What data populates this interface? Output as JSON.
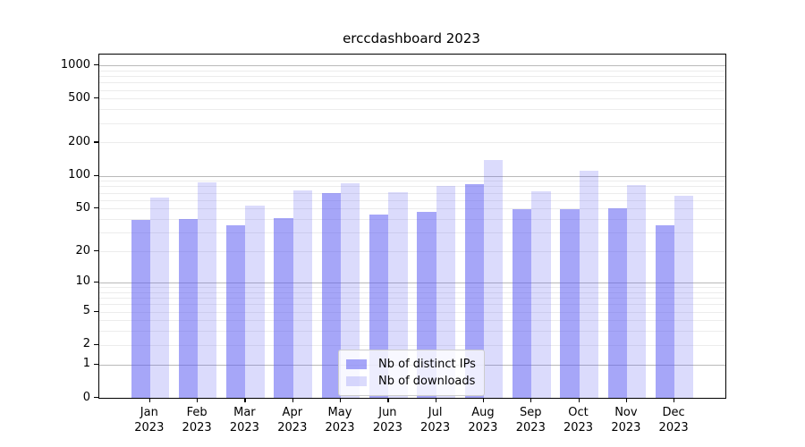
{
  "title": "erccdashboard 2023",
  "chart_data": {
    "type": "bar",
    "title": "erccdashboard 2023",
    "xlabel": "",
    "ylabel": "",
    "scale": "log1p",
    "grid": true,
    "legend_position": "lower center",
    "year": "2023",
    "months": [
      "Jan",
      "Feb",
      "Mar",
      "Apr",
      "May",
      "Jun",
      "Jul",
      "Aug",
      "Sep",
      "Oct",
      "Nov",
      "Dec"
    ],
    "series": [
      {
        "name": "Nb of distinct IPs",
        "color": "#5c5cf2",
        "alpha": 0.55,
        "values": [
          39,
          40,
          35,
          41,
          69,
          44,
          47,
          83,
          49,
          49,
          50,
          35
        ]
      },
      {
        "name": "Nb of downloads",
        "color": "#5c5cf2",
        "alpha": 0.22,
        "values": [
          63,
          87,
          53,
          74,
          86,
          71,
          80,
          140,
          72,
          110,
          82,
          66
        ]
      }
    ],
    "yticks": [
      0,
      1,
      2,
      5,
      10,
      20,
      50,
      100,
      200,
      500,
      1000
    ],
    "grid_major_values": [
      1,
      10,
      100,
      1000
    ],
    "grid_minor_values": [
      2,
      3,
      4,
      5,
      6,
      7,
      8,
      9,
      20,
      30,
      40,
      50,
      60,
      70,
      80,
      90,
      200,
      300,
      400,
      500,
      600,
      700,
      800,
      900
    ],
    "ylim": [
      0,
      1250
    ],
    "colors": {
      "bar_dark_flat": "#a7a7f7",
      "bar_light_flat": "#dbdbfc",
      "grid_major": "#b9b9b9",
      "grid_minor": "#ececec",
      "text": "#000000"
    }
  }
}
